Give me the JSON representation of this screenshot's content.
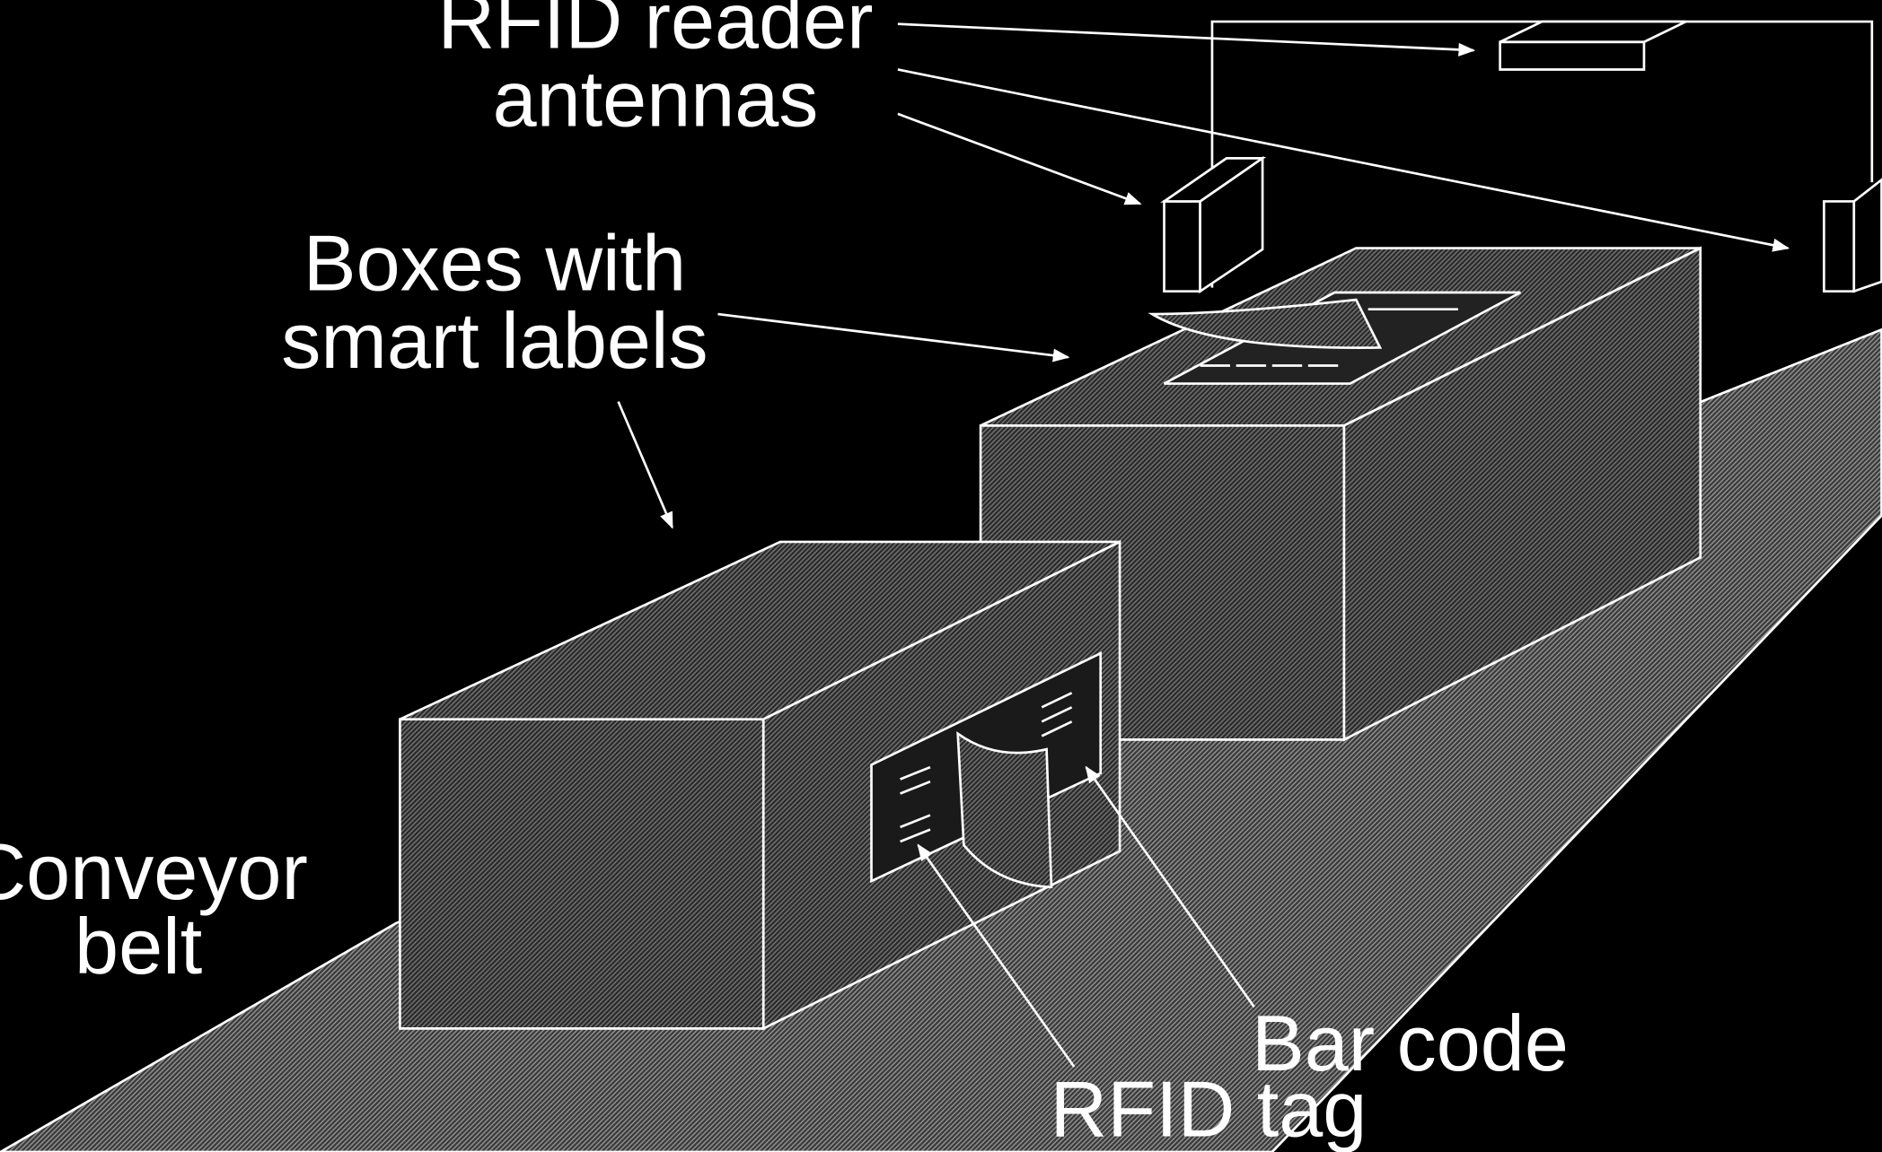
{
  "labels": {
    "antennas_line1": "RFID reader",
    "antennas_line2": "antennas",
    "boxes_line1": "Boxes with",
    "boxes_line2": "smart labels",
    "conveyor_line1": "Conveyor",
    "conveyor_line2": "belt",
    "bar_code": "Bar code",
    "rfid_tag": "RFID tag"
  },
  "colors": {
    "background": "#000000",
    "stroke": "#ffffff",
    "text": "#ffffff",
    "hatch_light": "#9a9a9a",
    "hatch_dark": "#1e1e1e"
  }
}
